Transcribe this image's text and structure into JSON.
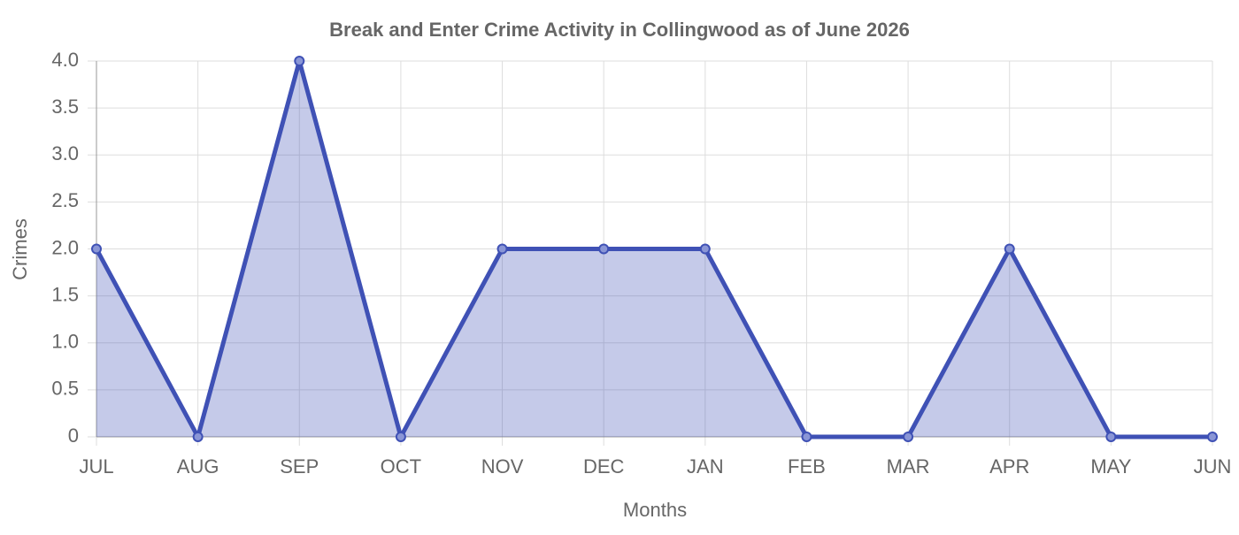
{
  "chart_data": {
    "type": "area",
    "title": "Break and Enter Crime Activity in Collingwood as of June 2026",
    "x_label": "Months",
    "y_label": "Crimes",
    "categories": [
      "JUL",
      "AUG",
      "SEP",
      "OCT",
      "NOV",
      "DEC",
      "JAN",
      "FEB",
      "MAR",
      "APR",
      "MAY",
      "JUN"
    ],
    "values": [
      2,
      0,
      4,
      0,
      2,
      2,
      2,
      0,
      0,
      2,
      0,
      0
    ],
    "color": "#3f51b5",
    "ylim": [
      0,
      4
    ],
    "yticks": [
      0,
      0.5,
      {
        "value": 1,
        "label": "1.0"
      },
      1.5,
      {
        "value": 2,
        "label": "2.0"
      },
      2.5,
      {
        "value": 3,
        "label": "3.0"
      },
      3.5,
      {
        "value": 4,
        "label": "4.0"
      }
    ],
    "grid": true
  }
}
